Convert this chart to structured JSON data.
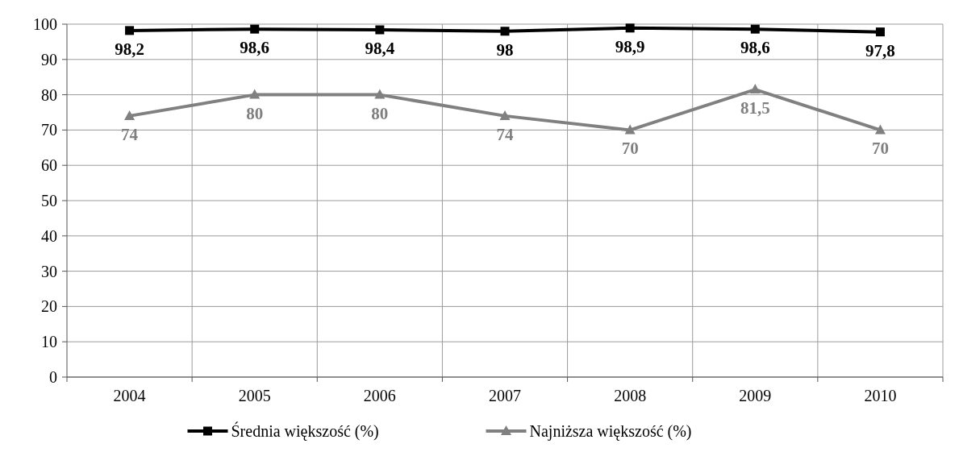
{
  "chart_data": {
    "type": "line",
    "categories": [
      "2004",
      "2005",
      "2006",
      "2007",
      "2008",
      "2009",
      "2010"
    ],
    "series": [
      {
        "name": "Średnia większość (%)",
        "color": "#000000",
        "marker": "square",
        "values": [
          98.2,
          98.6,
          98.4,
          98,
          98.9,
          98.6,
          97.8
        ],
        "value_labels": [
          "98,2",
          "98,6",
          "98,4",
          "98",
          "98,9",
          "98,6",
          "97,8"
        ]
      },
      {
        "name": "Najniższa większość (%)",
        "color": "#808080",
        "marker": "triangle",
        "values": [
          74,
          80,
          80,
          74,
          70,
          81.5,
          70
        ],
        "value_labels": [
          "74",
          "80",
          "80",
          "74",
          "70",
          "81,5",
          "70"
        ]
      }
    ],
    "ylim": [
      0,
      100
    ],
    "yticks": [
      0,
      10,
      20,
      30,
      40,
      50,
      60,
      70,
      80,
      90,
      100
    ],
    "grid": true,
    "legend": "bottom"
  }
}
